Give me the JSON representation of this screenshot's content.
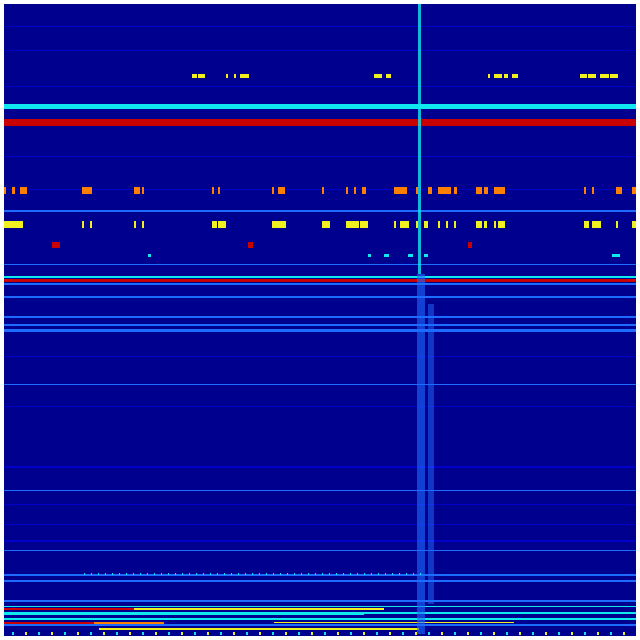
{
  "chart_data": {
    "type": "heatmap",
    "title": "",
    "xlabel": "",
    "ylabel": "",
    "colormap": "jet",
    "grid": false,
    "legend": "none"
  },
  "colors": {
    "background": "#00008f",
    "low": "#0000c8",
    "mid": "#1e6bff",
    "cyan": "#10e8f0",
    "yellow": "#f0f020",
    "orange": "#ff8000",
    "red": "#c80000"
  }
}
